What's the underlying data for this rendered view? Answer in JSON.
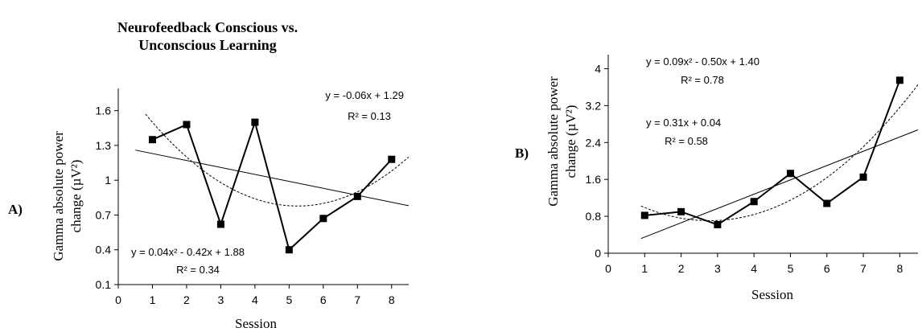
{
  "chart_data": [
    {
      "type": "line",
      "panel_label": "A)",
      "title": [
        "Neurofeedback Conscious vs.",
        "Unconscious Learning"
      ],
      "xlabel": "Session",
      "ylabel_line1": "Gamma absolute power",
      "ylabel_line2": "change (µV²)",
      "xlim": [
        0,
        8.5
      ],
      "ylim": [
        0.1,
        1.75
      ],
      "xticks": [
        0,
        1,
        2,
        3,
        4,
        5,
        6,
        7,
        8
      ],
      "xtick_labels": [
        "0",
        "1",
        "2",
        "3",
        "4",
        "5",
        "6",
        "7",
        "8"
      ],
      "yticks": [
        0.1,
        0.4,
        0.7,
        1.0,
        1.3,
        1.6
      ],
      "ytick_labels": [
        "0.1",
        "0.4",
        "0.7",
        "1",
        "1.3",
        "1.6"
      ],
      "x": [
        1,
        2,
        3,
        4,
        5,
        6,
        7,
        8
      ],
      "y": [
        1.35,
        1.48,
        0.62,
        1.5,
        0.4,
        0.67,
        0.86,
        1.18
      ],
      "linear_fit": {
        "slope": -0.06,
        "intercept": 1.29,
        "x_range": [
          0.5,
          8.5
        ]
      },
      "poly_fit": {
        "a": 0.04,
        "b": -0.42,
        "c": 1.88,
        "x_range": [
          0.8,
          8.5
        ]
      },
      "annotations": {
        "linear_eq": "y = -0.06x + 1.29",
        "linear_r2": "R² = 0.13",
        "poly_eq": "y = 0.04x² - 0.42x + 1.88",
        "poly_r2": "R² = 0.34"
      }
    },
    {
      "type": "line",
      "panel_label": "B)",
      "xlabel": "Session",
      "ylabel_line1": "Gamma absolute power",
      "ylabel_line2": "change (µV²)",
      "xlim": [
        0,
        8.5
      ],
      "ylim": [
        0,
        4.2
      ],
      "xticks": [
        0,
        1,
        2,
        3,
        4,
        5,
        6,
        7,
        8
      ],
      "xtick_labels": [
        "0",
        "1",
        "2",
        "3",
        "4",
        "5",
        "6",
        "7",
        "8"
      ],
      "yticks": [
        0,
        0.8,
        1.6,
        2.4,
        3.2,
        4
      ],
      "ytick_labels": [
        "0",
        "0.8",
        "1.6",
        "2.4",
        "3.2",
        "4"
      ],
      "x": [
        1,
        2,
        3,
        4,
        5,
        6,
        7,
        8
      ],
      "y": [
        0.82,
        0.9,
        0.62,
        1.12,
        1.73,
        1.08,
        1.65,
        3.75
      ],
      "linear_fit": {
        "slope": 0.31,
        "intercept": 0.04,
        "x_range": [
          0.9,
          8.5
        ]
      },
      "poly_fit": {
        "a": 0.09,
        "b": -0.5,
        "c": 1.4,
        "x_range": [
          0.9,
          8.5
        ]
      },
      "annotations": {
        "poly_eq": "y = 0.09x² - 0.50x + 1.40",
        "poly_r2": "R² = 0.78",
        "linear_eq": "y = 0.31x + 0.04",
        "linear_r2": "R² = 0.58"
      }
    }
  ]
}
